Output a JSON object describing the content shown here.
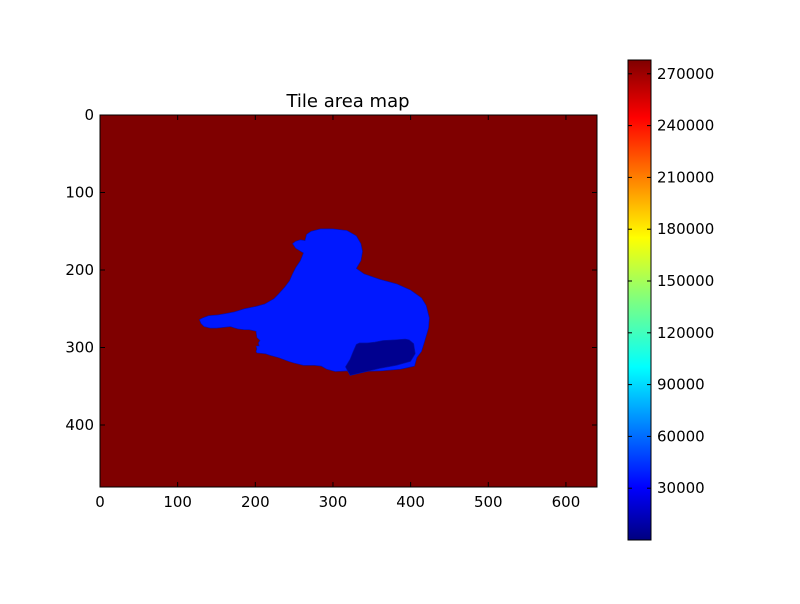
{
  "chart_data": {
    "type": "heatmap",
    "title": "Tile area map",
    "xlabel": "",
    "ylabel": "",
    "xlim": [
      0,
      640
    ],
    "ylim": [
      480,
      0
    ],
    "x_ticks": [
      0,
      100,
      200,
      300,
      400,
      500,
      600
    ],
    "y_ticks": [
      0,
      100,
      200,
      300,
      400
    ],
    "colormap": "jet",
    "colorbar": {
      "range": [
        0,
        278000
      ],
      "ticks": [
        30000,
        60000,
        90000,
        120000,
        150000,
        180000,
        210000,
        240000,
        270000
      ],
      "tick_labels": [
        "30000",
        "60000",
        "90000",
        "120000",
        "150000",
        "180000",
        "210000",
        "240000",
        "270000"
      ]
    },
    "regions": [
      {
        "name": "background",
        "value": 278000,
        "color": "#7f0000"
      },
      {
        "name": "figure",
        "value": 40000,
        "color": "#0018ff",
        "outline": [
          [
            300,
            147
          ],
          [
            318,
            149
          ],
          [
            330,
            156
          ],
          [
            336,
            166
          ],
          [
            338,
            176
          ],
          [
            336,
            188
          ],
          [
            330,
            198
          ],
          [
            340,
            205
          ],
          [
            360,
            212
          ],
          [
            382,
            218
          ],
          [
            400,
            226
          ],
          [
            414,
            236
          ],
          [
            420,
            246
          ],
          [
            424,
            262
          ],
          [
            423,
            275
          ],
          [
            418,
            292
          ],
          [
            414,
            305
          ],
          [
            408,
            313
          ],
          [
            405,
            324
          ],
          [
            387,
            328
          ],
          [
            362,
            330
          ],
          [
            333,
            331
          ],
          [
            320,
            330
          ],
          [
            303,
            331
          ],
          [
            292,
            328
          ],
          [
            285,
            324
          ],
          [
            276,
            323
          ],
          [
            262,
            323
          ],
          [
            250,
            320
          ],
          [
            243,
            318
          ],
          [
            230,
            313
          ],
          [
            219,
            310
          ],
          [
            213,
            308
          ],
          [
            202,
            307
          ],
          [
            201,
            305
          ],
          [
            202,
            302
          ],
          [
            201,
            298
          ],
          [
            205,
            298
          ],
          [
            204,
            294
          ],
          [
            206,
            291
          ],
          [
            202,
            287
          ],
          [
            201,
            279
          ],
          [
            192,
            277
          ],
          [
            186,
            277
          ],
          [
            178,
            276
          ],
          [
            174,
            275
          ],
          [
            168,
            273
          ],
          [
            158,
            274
          ],
          [
            150,
            275
          ],
          [
            142,
            275
          ],
          [
            134,
            273
          ],
          [
            130,
            269
          ],
          [
            128,
            264
          ],
          [
            132,
            262
          ],
          [
            140,
            259
          ],
          [
            152,
            258
          ],
          [
            163,
            256
          ],
          [
            173,
            254
          ],
          [
            186,
            250
          ],
          [
            201,
            247
          ],
          [
            212,
            244
          ],
          [
            224,
            237
          ],
          [
            230,
            231
          ],
          [
            238,
            222
          ],
          [
            244,
            214
          ],
          [
            248,
            205
          ],
          [
            252,
            197
          ],
          [
            258,
            188
          ],
          [
            262,
            178
          ],
          [
            252,
            172
          ],
          [
            248,
            166
          ],
          [
            252,
            163
          ],
          [
            258,
            161
          ],
          [
            264,
            162
          ],
          [
            266,
            154
          ],
          [
            272,
            150
          ],
          [
            284,
            147
          ]
        ]
      },
      {
        "name": "shadow",
        "value": 10000,
        "color": "#00008f",
        "outline": [
          [
            322,
            336
          ],
          [
            339,
            332
          ],
          [
            360,
            327
          ],
          [
            382,
            323
          ],
          [
            400,
            318
          ],
          [
            406,
            308
          ],
          [
            404,
            295
          ],
          [
            398,
            290
          ],
          [
            393,
            289
          ],
          [
            380,
            290
          ],
          [
            364,
            291
          ],
          [
            354,
            293
          ],
          [
            344,
            294
          ],
          [
            334,
            294
          ],
          [
            330,
            296
          ],
          [
            326,
            305
          ],
          [
            322,
            315
          ],
          [
            316,
            325
          ]
        ]
      }
    ]
  }
}
